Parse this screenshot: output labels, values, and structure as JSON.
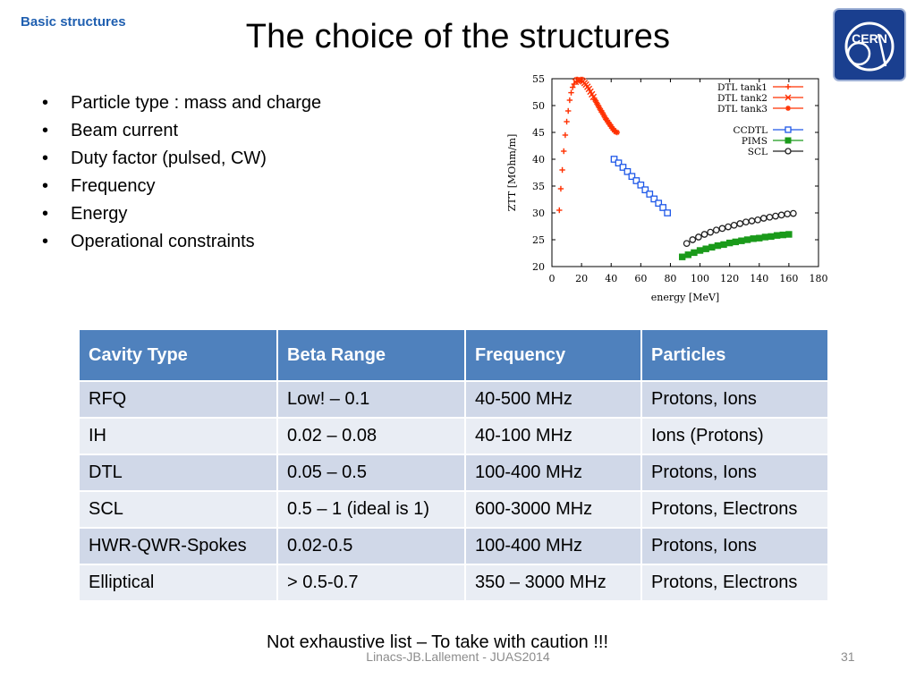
{
  "header": {
    "section": "Basic structures",
    "title": "The choice of the structures",
    "logo_text": "CERN"
  },
  "bullets": [
    "Particle type : mass and charge",
    "Beam current",
    "Duty factor (pulsed, CW)",
    "Frequency",
    "Energy",
    "Operational constraints"
  ],
  "chart_data": {
    "type": "scatter",
    "xlabel": "energy [MeV]",
    "ylabel": "ZTT [MOhm/m]",
    "xlim": [
      0,
      180
    ],
    "ylim": [
      20,
      55
    ],
    "xticks": [
      0,
      20,
      40,
      60,
      80,
      100,
      120,
      140,
      160,
      180
    ],
    "yticks": [
      20,
      25,
      30,
      35,
      40,
      45,
      50,
      55
    ],
    "grid": false,
    "legend_position": "top-right",
    "series": [
      {
        "name": "DTL tank1",
        "color": "#ff3000",
        "marker": "plus",
        "points": [
          [
            5,
            30.5
          ],
          [
            6,
            34.5
          ],
          [
            7,
            38
          ],
          [
            8,
            41.5
          ],
          [
            9,
            44.5
          ],
          [
            10,
            47
          ],
          [
            11,
            49
          ],
          [
            12,
            51
          ],
          [
            13,
            52.4
          ],
          [
            14,
            53.4
          ],
          [
            15,
            54
          ]
        ]
      },
      {
        "name": "DTL tank2",
        "color": "#ff3000",
        "marker": "x",
        "points": [
          [
            16,
            54.4
          ],
          [
            17,
            54.7
          ],
          [
            18,
            54.8
          ],
          [
            19,
            54.8
          ],
          [
            20,
            54.7
          ],
          [
            21,
            54.5
          ],
          [
            22,
            54.2
          ],
          [
            23,
            53.9
          ],
          [
            24,
            53.5
          ],
          [
            25,
            53.1
          ],
          [
            26,
            52.6
          ],
          [
            27,
            52.1
          ],
          [
            28,
            51.6
          ]
        ]
      },
      {
        "name": "DTL tank3",
        "color": "#ff3000",
        "marker": "star",
        "points": [
          [
            29,
            51.1
          ],
          [
            30,
            50.6
          ],
          [
            31,
            50.1
          ],
          [
            32,
            49.6
          ],
          [
            33,
            49.1
          ],
          [
            34,
            48.7
          ],
          [
            35,
            48.2
          ],
          [
            36,
            47.7
          ],
          [
            37,
            47.3
          ],
          [
            38,
            46.9
          ],
          [
            39,
            46.5
          ],
          [
            40,
            46.1
          ],
          [
            41,
            45.7
          ],
          [
            42,
            45.4
          ],
          [
            43,
            45.1
          ],
          [
            44,
            45
          ]
        ]
      },
      {
        "name": "CCDTL",
        "color": "#1e58e8",
        "marker": "square",
        "points": [
          [
            42,
            40
          ],
          [
            45,
            39.3
          ],
          [
            48,
            38.5
          ],
          [
            51,
            37.7
          ],
          [
            54,
            36.8
          ],
          [
            57,
            36
          ],
          [
            60,
            35.2
          ],
          [
            63,
            34.3
          ],
          [
            66,
            33.5
          ],
          [
            69,
            32.6
          ],
          [
            72,
            31.8
          ],
          [
            75,
            31
          ],
          [
            78,
            30
          ]
        ]
      },
      {
        "name": "PIMS",
        "color": "#1a9a1a",
        "marker": "filled-square",
        "points": [
          [
            88,
            21.8
          ],
          [
            92,
            22.2
          ],
          [
            96,
            22.6
          ],
          [
            100,
            23
          ],
          [
            104,
            23.3
          ],
          [
            108,
            23.6
          ],
          [
            112,
            23.9
          ],
          [
            116,
            24.1
          ],
          [
            120,
            24.4
          ],
          [
            124,
            24.6
          ],
          [
            128,
            24.8
          ],
          [
            132,
            25
          ],
          [
            136,
            25.2
          ],
          [
            140,
            25.3
          ],
          [
            144,
            25.5
          ],
          [
            148,
            25.6
          ],
          [
            152,
            25.8
          ],
          [
            156,
            25.9
          ],
          [
            160,
            26
          ]
        ]
      },
      {
        "name": "SCL",
        "color": "#222222",
        "marker": "circle",
        "points": [
          [
            91,
            24.3
          ],
          [
            95,
            25
          ],
          [
            99,
            25.5
          ],
          [
            103,
            26
          ],
          [
            107,
            26.4
          ],
          [
            111,
            26.8
          ],
          [
            115,
            27.1
          ],
          [
            119,
            27.4
          ],
          [
            123,
            27.7
          ],
          [
            127,
            28
          ],
          [
            131,
            28.3
          ],
          [
            135,
            28.5
          ],
          [
            139,
            28.7
          ],
          [
            143,
            29
          ],
          [
            147,
            29.2
          ],
          [
            151,
            29.4
          ],
          [
            155,
            29.6
          ],
          [
            159,
            29.8
          ],
          [
            163,
            29.9
          ]
        ]
      }
    ]
  },
  "table": {
    "headers": [
      "Cavity Type",
      "Beta Range",
      "Frequency",
      "Particles"
    ],
    "rows": [
      [
        "RFQ",
        "Low! – 0.1",
        "40-500  MHz",
        "Protons, Ions"
      ],
      [
        "IH",
        "0.02 – 0.08",
        "40-100 MHz",
        "Ions (Protons)"
      ],
      [
        "DTL",
        "0.05 – 0.5",
        "100-400 MHz",
        "Protons, Ions"
      ],
      [
        "SCL",
        "0.5 – 1 (ideal is 1)",
        "600-3000 MHz",
        "Protons, Electrons"
      ],
      [
        "HWR-QWR-Spokes",
        "0.02-0.5",
        "100-400 MHz",
        "Protons, Ions"
      ],
      [
        "Elliptical",
        "> 0.5-0.7",
        "350 – 3000 MHz",
        "Protons, Electrons"
      ]
    ]
  },
  "caution": "Not exhaustive list – To take with caution !!!",
  "footer": {
    "text": "Linacs-JB.Lallement - JUAS2014",
    "page": "31"
  }
}
